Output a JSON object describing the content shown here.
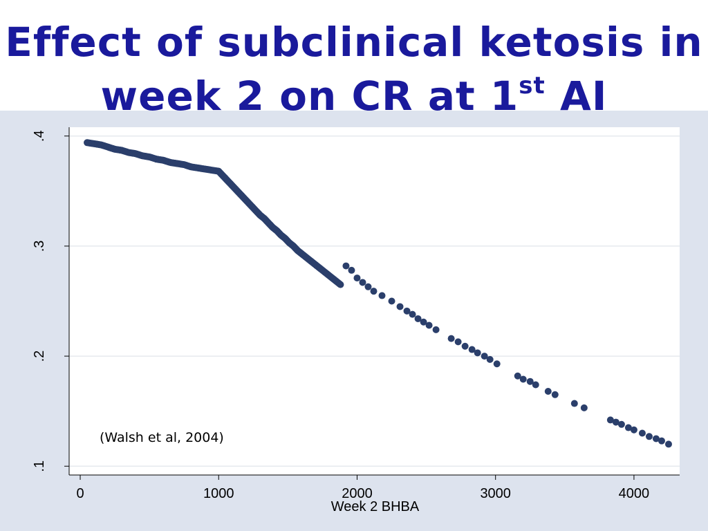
{
  "slide": {
    "title_line1": "Effect of subclinical ketosis in",
    "title_line2_pre": "week 2 on CR at 1",
    "title_line2_sup": "st",
    "title_line2_post": " AI"
  },
  "chart_data": {
    "type": "scatter",
    "title": "",
    "xlabel": "Week 2 BHBA",
    "ylabel": "",
    "xlim": [
      -80,
      4330
    ],
    "ylim": [
      0.092,
      0.408
    ],
    "x_ticks": [
      0,
      1000,
      2000,
      3000,
      4000
    ],
    "x_tick_labels": [
      "0",
      "1000",
      "2000",
      "3000",
      "4000"
    ],
    "y_ticks": [
      0.1,
      0.2,
      0.3,
      0.4
    ],
    "y_tick_labels": [
      ".1",
      ".2",
      ".3",
      ".4"
    ],
    "grid": true,
    "marker_color": "#2b3f6b",
    "annotation": "(Walsh et al, 2004)",
    "series": [
      {
        "points": [
          [
            50,
            0.394
          ],
          [
            100,
            0.393
          ],
          [
            150,
            0.392
          ],
          [
            200,
            0.39
          ],
          [
            250,
            0.388
          ],
          [
            300,
            0.387
          ],
          [
            350,
            0.385
          ],
          [
            400,
            0.384
          ],
          [
            450,
            0.382
          ],
          [
            500,
            0.381
          ],
          [
            550,
            0.379
          ],
          [
            600,
            0.378
          ],
          [
            650,
            0.376
          ],
          [
            700,
            0.375
          ],
          [
            750,
            0.374
          ],
          [
            800,
            0.372
          ],
          [
            850,
            0.371
          ],
          [
            900,
            0.37
          ],
          [
            950,
            0.369
          ],
          [
            1000,
            0.368
          ],
          [
            1030,
            0.364
          ],
          [
            1060,
            0.36
          ],
          [
            1090,
            0.356
          ],
          [
            1120,
            0.352
          ],
          [
            1150,
            0.348
          ],
          [
            1180,
            0.344
          ],
          [
            1210,
            0.34
          ],
          [
            1240,
            0.336
          ],
          [
            1270,
            0.332
          ],
          [
            1300,
            0.328
          ],
          [
            1330,
            0.325
          ],
          [
            1360,
            0.321
          ],
          [
            1390,
            0.317
          ],
          [
            1420,
            0.314
          ],
          [
            1450,
            0.31
          ],
          [
            1480,
            0.307
          ],
          [
            1510,
            0.303
          ],
          [
            1540,
            0.3
          ],
          [
            1570,
            0.296
          ],
          [
            1600,
            0.293
          ],
          [
            1640,
            0.289
          ],
          [
            1680,
            0.285
          ],
          [
            1720,
            0.281
          ],
          [
            1760,
            0.277
          ],
          [
            1800,
            0.273
          ],
          [
            1840,
            0.269
          ],
          [
            1880,
            0.265
          ],
          [
            1920,
            0.282
          ],
          [
            1960,
            0.278
          ],
          [
            2000,
            0.271
          ],
          [
            2040,
            0.267
          ],
          [
            2080,
            0.263
          ],
          [
            2120,
            0.259
          ],
          [
            2180,
            0.255
          ],
          [
            2250,
            0.25
          ],
          [
            2310,
            0.245
          ],
          [
            2360,
            0.241
          ],
          [
            2400,
            0.238
          ],
          [
            2440,
            0.234
          ],
          [
            2480,
            0.231
          ],
          [
            2520,
            0.228
          ],
          [
            2570,
            0.224
          ],
          [
            2680,
            0.216
          ],
          [
            2730,
            0.213
          ],
          [
            2780,
            0.209
          ],
          [
            2830,
            0.206
          ],
          [
            2870,
            0.203
          ],
          [
            2920,
            0.2
          ],
          [
            2960,
            0.197
          ],
          [
            3010,
            0.193
          ],
          [
            3160,
            0.182
          ],
          [
            3200,
            0.179
          ],
          [
            3250,
            0.177
          ],
          [
            3290,
            0.174
          ],
          [
            3380,
            0.168
          ],
          [
            3430,
            0.165
          ],
          [
            3570,
            0.157
          ],
          [
            3640,
            0.153
          ],
          [
            3830,
            0.142
          ],
          [
            3870,
            0.14
          ],
          [
            3910,
            0.138
          ],
          [
            3960,
            0.135
          ],
          [
            4000,
            0.133
          ],
          [
            4060,
            0.13
          ],
          [
            4110,
            0.127
          ],
          [
            4160,
            0.125
          ],
          [
            4200,
            0.123
          ],
          [
            4250,
            0.12
          ]
        ]
      }
    ]
  }
}
